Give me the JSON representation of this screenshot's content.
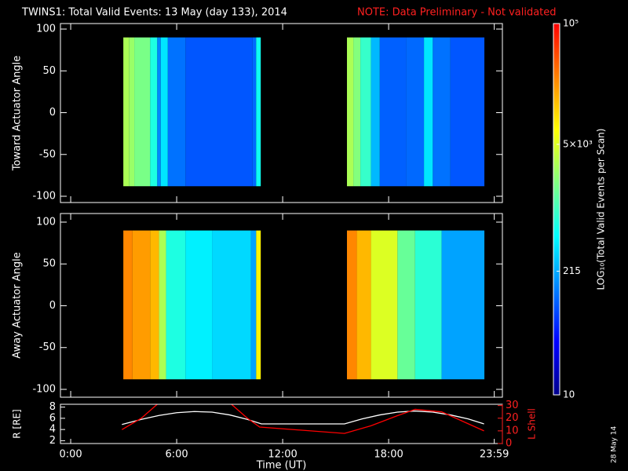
{
  "header": {
    "title": "TWINS1: Total Valid Events: 13 May (day 133), 2014",
    "note": "NOTE: Data Preliminary - Not validated",
    "date_stamp": "28 May 14"
  },
  "chart_data": [
    {
      "type": "spectrogram",
      "ylabel": "Toward Actuator Angle",
      "xlim": [
        -0.58,
        24.44
      ],
      "ylim": [
        -107.5,
        106.6
      ],
      "yticks": [
        -100,
        -50,
        0,
        50,
        100
      ],
      "angle_range": [
        -88,
        90
      ],
      "blocks": [
        {
          "bins": [
            2.98,
            3.3,
            3.6,
            4.5,
            4.9,
            5.1,
            5.5,
            6.5,
            10.3,
            10.5,
            10.76
          ],
          "values": [
            3000,
            2500,
            1800,
            700,
            150,
            400,
            120,
            90,
            110,
            600
          ]
        },
        {
          "bins": [
            15.64,
            16.0,
            16.4,
            17.0,
            17.5,
            19.0,
            20.0,
            20.5,
            21.5,
            23.42
          ],
          "values": [
            3000,
            2000,
            900,
            250,
            100,
            110,
            400,
            120,
            90
          ]
        }
      ]
    },
    {
      "type": "spectrogram",
      "ylabel": "Away Actuator Angle",
      "xlim": [
        -0.58,
        24.44
      ],
      "ylim": [
        -109.4,
        110.3
      ],
      "yticks": [
        -100,
        -50,
        0,
        50,
        100
      ],
      "angle_range": [
        -88,
        90
      ],
      "blocks": [
        {
          "bins": [
            2.98,
            3.5,
            4.5,
            5.0,
            5.4,
            6.5,
            8.0,
            10.2,
            10.5,
            10.76
          ],
          "values": [
            25000,
            20000,
            15000,
            3000,
            700,
            450,
            350,
            200,
            8000
          ]
        },
        {
          "bins": [
            15.64,
            16.2,
            17.0,
            18.5,
            19.5,
            21.0,
            23.42
          ],
          "values": [
            25000,
            15000,
            5000,
            1500,
            800,
            200
          ]
        }
      ]
    },
    {
      "type": "line",
      "xlabel": "Time (UT)",
      "xlim": [
        -0.58,
        24.44
      ],
      "xticks": [
        {
          "value": 0,
          "label": "0:00"
        },
        {
          "value": 6,
          "label": "6:00"
        },
        {
          "value": 12,
          "label": "12:00"
        },
        {
          "value": 18,
          "label": "18:00"
        },
        {
          "value": 23.98,
          "label": "23:59"
        }
      ],
      "ylabel": "R [RE]",
      "ylim": [
        1.5,
        8.5
      ],
      "yticks": [
        2,
        4,
        6,
        8
      ],
      "y2label": "L Shell",
      "y2lim": [
        0,
        31
      ],
      "y2ticks": [
        0,
        10,
        20,
        30
      ],
      "series": [
        {
          "color": "#ffffff",
          "x": [
            2.9,
            4,
            5,
            6,
            7,
            8,
            9,
            10,
            10.8,
            15.5,
            16.5,
            17.5,
            18.5,
            19.5,
            20.5,
            21.5,
            22.5,
            23.4
          ],
          "values": [
            4.9,
            5.8,
            6.5,
            7.0,
            7.2,
            7.1,
            6.6,
            5.8,
            5.0,
            5.0,
            5.9,
            6.6,
            7.1,
            7.3,
            7.1,
            6.6,
            5.9,
            5.0
          ]
        },
        {
          "color": "#ff0000",
          "axis": "y2",
          "x": [
            2.9,
            4,
            4.9,
            7,
            9.1,
            10,
            10.7,
            15.5,
            17,
            18.5,
            19.5,
            21,
            23.4
          ],
          "values": [
            11,
            20,
            31,
            null,
            31,
            20,
            13,
            8,
            14,
            22,
            27,
            25,
            10
          ]
        }
      ]
    },
    {
      "type": "colorbar",
      "label": "LOG₁₀(Total Valid Events per Scan)",
      "log": true,
      "ylim": [
        10,
        100000
      ],
      "yticks": [
        10,
        215,
        {
          "value": 5000,
          "label": "5×10³"
        },
        {
          "value": 100000,
          "label": "10⁵"
        }
      ],
      "colormap": [
        "#00008c",
        "#0000ff",
        "#0080ff",
        "#00ffff",
        "#80ff80",
        "#ffff00",
        "#ff8000",
        "#ff0000"
      ]
    }
  ]
}
